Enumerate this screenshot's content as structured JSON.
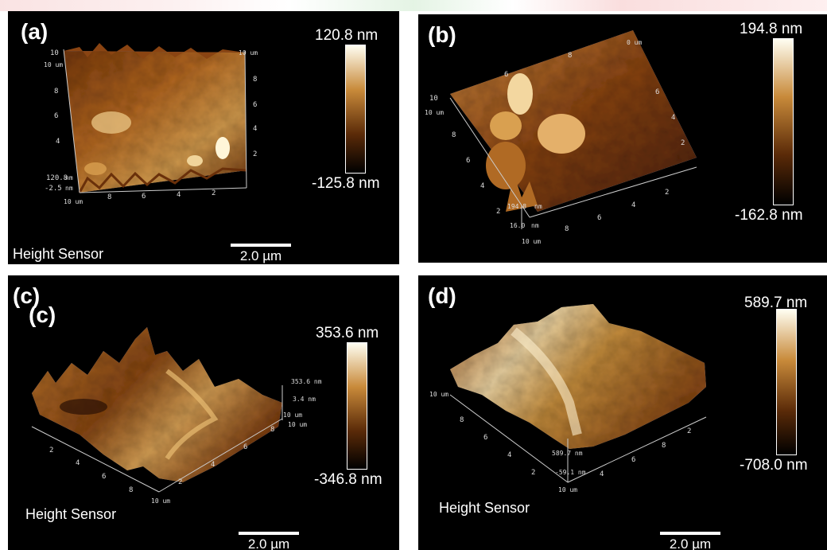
{
  "panels": [
    {
      "label": "(a)",
      "scale_max": "120.8 nm",
      "scale_min": "-125.8 nm",
      "sensor": "Height Sensor",
      "scalebar": "2.0 µm",
      "axis": {
        "top_left": "10",
        "left_um": "10 um",
        "left_ticks": [
          "8",
          "6",
          "4"
        ],
        "z_max": "120.8",
        "z_min": "-2.5",
        "z_unit": "nm",
        "bottom_um": "10 um",
        "bottom_ticks": [
          "8",
          "6",
          "4",
          "2"
        ],
        "right_um": "10 um",
        "right_ticks": [
          "8",
          "6",
          "4",
          "2"
        ]
      }
    },
    {
      "label": "(b)",
      "scale_max": "194.8 nm",
      "scale_min": "-162.8 nm",
      "axis": {
        "left_10": "10",
        "left_um": "10 um",
        "left_ticks": [
          "8",
          "6",
          "4",
          "2"
        ],
        "top_ticks": [
          "6",
          "8"
        ],
        "top_um": "0 um",
        "right_ticks": [
          "6",
          "4",
          "2"
        ],
        "z_max": "194.8",
        "z_min": "16.0",
        "z_unit": "nm",
        "bottom_um": "10 um",
        "bottom_ticks": [
          "8",
          "6",
          "4",
          "2"
        ]
      }
    },
    {
      "label": "(c)",
      "label2": "(c)",
      "scale_max": "353.6 nm",
      "scale_min": "-346.8 nm",
      "sensor": "Height Sensor",
      "scalebar": "2.0 µm",
      "axis": {
        "z_max": "353.6 nm",
        "z_mid": "3.4 nm",
        "um1": "10 um",
        "um2": "10 um",
        "left_ticks": [
          "2",
          "4",
          "6",
          "8"
        ],
        "left_um": "10 um",
        "right_ticks": [
          "8",
          "6",
          "4",
          "2"
        ]
      }
    },
    {
      "label": "(d)",
      "scale_max": "589.7 nm",
      "scale_min": "-708.0 nm",
      "sensor": "Height Sensor",
      "scalebar": "2.0 µm",
      "axis": {
        "left_um": "10 um",
        "left_ticks": [
          "8",
          "6",
          "4",
          "2"
        ],
        "z_max": "589.7 nm",
        "z_min": "-59.1 nm",
        "bottom_um": "10 um",
        "right_ticks": [
          "4",
          "6",
          "8",
          "2"
        ]
      }
    }
  ],
  "colors": {
    "background": "#000000",
    "afm_dark": "#3a1a06",
    "afm_mid": "#a0581c",
    "afm_light": "#f5e0b0"
  }
}
